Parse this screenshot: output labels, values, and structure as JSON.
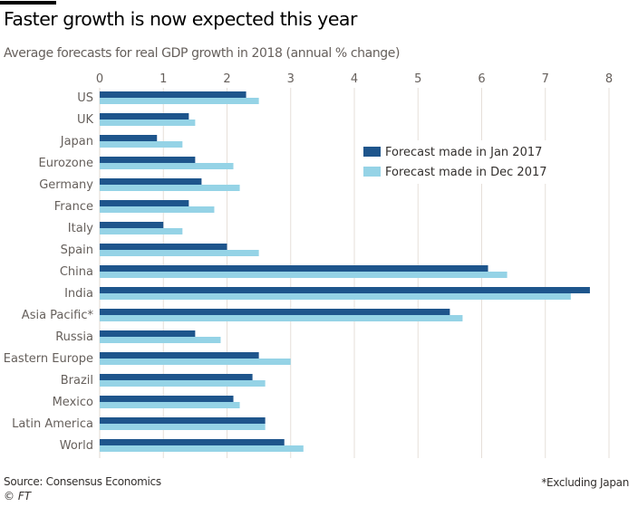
{
  "header": {
    "title": "Faster growth is now expected this year",
    "subtitle": "Average forecasts for real GDP growth in 2018 (annual % change)"
  },
  "footer": {
    "source": "Source: Consensus Economics",
    "copyright_symbol": "©",
    "copyright_brand": "FT",
    "note": "*Excluding Japan"
  },
  "colors": {
    "jan_2017": "#1e558c",
    "dec_2017": "#95d3e6",
    "gridline": "#e6dfd9"
  },
  "chart_data": {
    "type": "bar",
    "orientation": "horizontal",
    "title": "Faster growth is now expected this year",
    "subtitle": "Average forecasts for real GDP growth in 2018 (annual % change)",
    "xlabel": "",
    "ylabel": "",
    "xlim": [
      0,
      8
    ],
    "xticks": [
      0,
      1,
      2,
      3,
      4,
      5,
      6,
      7,
      8
    ],
    "x_axis_position": "top",
    "grid": true,
    "legend_position": "center-right",
    "categories": [
      "US",
      "UK",
      "Japan",
      "Eurozone",
      "Germany",
      "France",
      "Italy",
      "Spain",
      "China",
      "India",
      "Asia Pacific*",
      "Russia",
      "Eastern Europe",
      "Brazil",
      "Mexico",
      "Latin America",
      "World"
    ],
    "series": [
      {
        "name": "Forecast made in Jan 2017",
        "color": "#1e558c",
        "values": [
          2.3,
          1.4,
          0.9,
          1.5,
          1.6,
          1.4,
          1.0,
          2.0,
          6.1,
          7.7,
          5.5,
          1.5,
          2.5,
          2.4,
          2.1,
          2.6,
          2.9
        ]
      },
      {
        "name": "Forecast made in Dec 2017",
        "color": "#95d3e6",
        "values": [
          2.5,
          1.5,
          1.3,
          2.1,
          2.2,
          1.8,
          1.3,
          2.5,
          6.4,
          7.4,
          5.7,
          1.9,
          3.0,
          2.6,
          2.2,
          2.6,
          3.2
        ]
      }
    ],
    "source": "Source: Consensus Economics",
    "annotations": [
      "*Excluding Japan"
    ]
  }
}
